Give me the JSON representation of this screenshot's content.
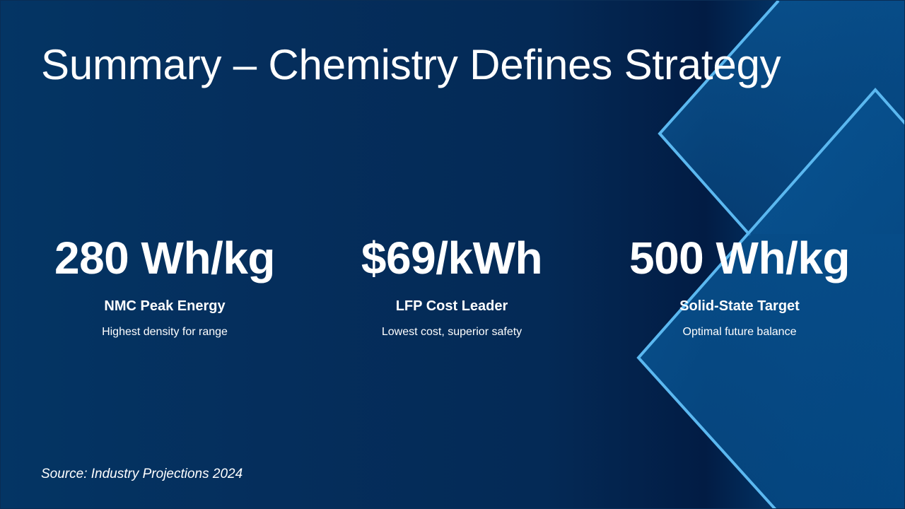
{
  "slide": {
    "title": "Summary – Chemistry Defines Strategy",
    "source": "Source: Industry Projections 2024",
    "stats": [
      {
        "value": "280 Wh/kg",
        "label": "NMC Peak Energy",
        "description": "Highest density for range"
      },
      {
        "value": "$69/kWh",
        "label": "LFP Cost Leader",
        "description": "Lowest cost, superior safety"
      },
      {
        "value": "500 Wh/kg",
        "label": "Solid-State Target",
        "description": "Optimal future balance"
      }
    ]
  },
  "colors": {
    "background_left": "#043564",
    "background_dark": "#021c44",
    "accent_outline": "#5bb8f0",
    "text": "#ffffff"
  }
}
